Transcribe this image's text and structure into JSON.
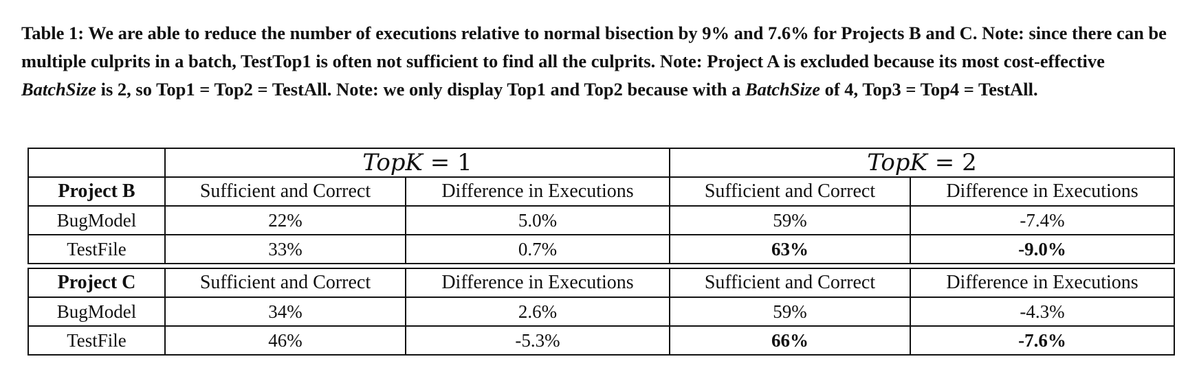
{
  "caption": {
    "p1": "Table 1: We are able to reduce the number of executions relative to normal bisection by 9% and 7.6% for Projects B and C. Note: since there can be multiple culprits in a batch, TestTop1 is often not sufficient to find all the culprits. Note: Project A is excluded because its most cost-effective ",
    "em1": "BatchSize",
    "p2": " is 2, so Top1 = Top2 = TestAll. Note: we only display Top1 and Top2 because with a ",
    "em2": "BatchSize",
    "p3": " of 4, Top3 = Top4 = TestAll."
  },
  "header": {
    "topk_var": "TopK",
    "topk1_rest": " = 1",
    "topk2_rest": " = 2"
  },
  "columns": {
    "sufficient": "Sufficient and Correct",
    "difference": "Difference in Executions"
  },
  "project_b": {
    "name": "Project B",
    "rows": [
      {
        "model": "BugModel",
        "s1": "22%",
        "d1": "5.0%",
        "s2": "59%",
        "d2": "-7.4%"
      },
      {
        "model": "TestFile",
        "s1": "33%",
        "d1": "0.7%",
        "s2": "63%",
        "d2": "-9.0%"
      }
    ]
  },
  "project_c": {
    "name": "Project C",
    "rows": [
      {
        "model": "BugModel",
        "s1": "34%",
        "d1": "2.6%",
        "s2": "59%",
        "d2": "-4.3%"
      },
      {
        "model": "TestFile",
        "s1": "46%",
        "d1": "-5.3%",
        "s2": "66%",
        "d2": "-7.6%"
      }
    ]
  }
}
